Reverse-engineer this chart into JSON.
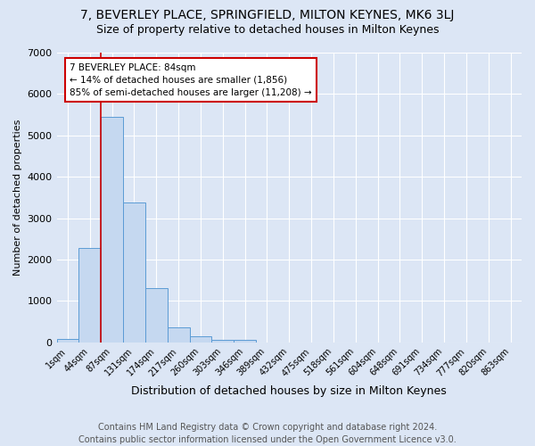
{
  "title": "7, BEVERLEY PLACE, SPRINGFIELD, MILTON KEYNES, MK6 3LJ",
  "subtitle": "Size of property relative to detached houses in Milton Keynes",
  "xlabel": "Distribution of detached houses by size in Milton Keynes",
  "ylabel": "Number of detached properties",
  "categories": [
    "1sqm",
    "44sqm",
    "87sqm",
    "131sqm",
    "174sqm",
    "217sqm",
    "260sqm",
    "303sqm",
    "346sqm",
    "389sqm",
    "432sqm",
    "475sqm",
    "518sqm",
    "561sqm",
    "604sqm",
    "648sqm",
    "691sqm",
    "734sqm",
    "777sqm",
    "820sqm",
    "863sqm"
  ],
  "values": [
    75,
    2280,
    5450,
    3380,
    1300,
    360,
    155,
    65,
    55,
    0,
    0,
    0,
    0,
    0,
    0,
    0,
    0,
    0,
    0,
    0,
    0
  ],
  "bar_color": "#c5d8f0",
  "bar_edge_color": "#5b9bd5",
  "annotation_text": "7 BEVERLEY PLACE: 84sqm\n← 14% of detached houses are smaller (1,856)\n85% of semi-detached houses are larger (11,208) →",
  "annotation_box_color": "#ffffff",
  "annotation_box_edge": "#cc0000",
  "red_line_color": "#cc0000",
  "footer": "Contains HM Land Registry data © Crown copyright and database right 2024.\nContains public sector information licensed under the Open Government Licence v3.0.",
  "ylim": [
    0,
    7000
  ],
  "background_color": "#dce6f5",
  "plot_bg_color": "#dce6f5",
  "title_fontsize": 10,
  "subtitle_fontsize": 9,
  "footer_fontsize": 7
}
